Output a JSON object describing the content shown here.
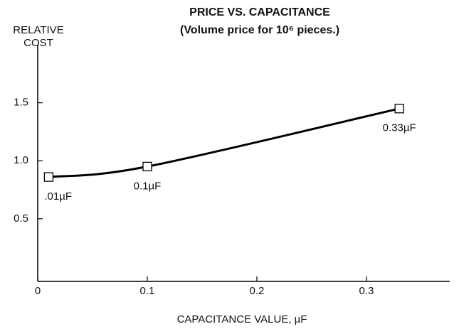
{
  "chart_data": {
    "type": "line",
    "title": "PRICE VS. CAPACITANCE",
    "subtitle": "(Volume price for 10⁶ pieces.)",
    "y_label": [
      "RELATIVE",
      "COST"
    ],
    "x_label": "CAPACITANCE VALUE, µF",
    "x": [
      0.01,
      0.1,
      0.33
    ],
    "series": [
      {
        "color": "#000000",
        "values": [
          0.86,
          0.95,
          1.45
        ],
        "point_labels": [
          ".01µF",
          "0.1µF",
          "0.33µF"
        ]
      }
    ],
    "xlim": [
      0,
      0.376
    ],
    "ylim": [
      -0.04,
      2.0
    ],
    "xticks": [
      0,
      0.1,
      0.2,
      0.3
    ],
    "yticks": [
      0.5,
      {
        "value": 1,
        "label": "1.0"
      },
      1.5
    ],
    "grid": false
  }
}
